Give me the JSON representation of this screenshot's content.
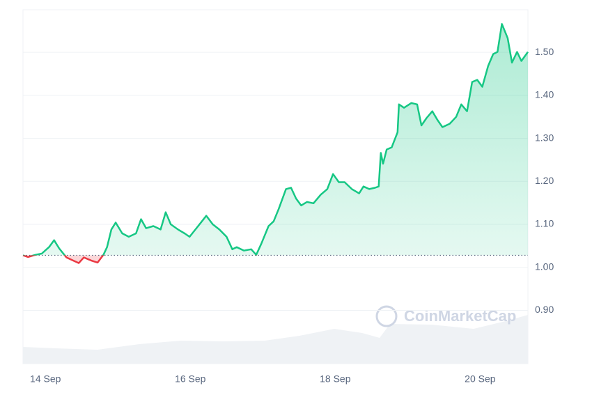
{
  "chart_data": {
    "type": "line",
    "x": [
      13.69,
      13.76,
      13.86,
      13.95,
      14.05,
      14.12,
      14.19,
      14.29,
      14.38,
      14.46,
      14.53,
      14.63,
      14.72,
      14.8,
      14.85,
      14.91,
      14.97,
      15.06,
      15.15,
      15.25,
      15.32,
      15.39,
      15.49,
      15.59,
      15.66,
      15.73,
      15.83,
      15.92,
      15.99,
      16.07,
      16.16,
      16.22,
      16.31,
      16.4,
      16.5,
      16.58,
      16.64,
      16.74,
      16.84,
      16.91,
      16.98,
      17.08,
      17.15,
      17.22,
      17.32,
      17.39,
      17.46,
      17.53,
      17.61,
      17.7,
      17.8,
      17.89,
      17.97,
      18.05,
      18.13,
      18.23,
      18.33,
      18.39,
      18.47,
      18.55,
      18.6,
      18.63,
      18.66,
      18.71,
      18.78,
      18.86,
      18.88,
      18.95,
      19.05,
      19.13,
      19.19,
      19.26,
      19.34,
      19.41,
      19.48,
      19.58,
      19.67,
      19.74,
      19.82,
      19.89,
      19.96,
      20.03,
      20.11,
      20.18,
      20.24,
      20.3,
      20.38,
      20.44,
      20.51,
      20.57,
      20.66
    ],
    "series": [
      {
        "values": [
          1.028,
          1.024,
          1.029,
          1.032,
          1.047,
          1.063,
          1.044,
          1.023,
          1.016,
          1.01,
          1.023,
          1.016,
          1.011,
          1.029,
          1.047,
          1.088,
          1.104,
          1.079,
          1.071,
          1.079,
          1.112,
          1.091,
          1.096,
          1.088,
          1.128,
          1.1,
          1.088,
          1.079,
          1.071,
          1.088,
          1.107,
          1.12,
          1.1,
          1.088,
          1.071,
          1.042,
          1.047,
          1.039,
          1.042,
          1.029,
          1.055,
          1.096,
          1.107,
          1.136,
          1.182,
          1.185,
          1.16,
          1.144,
          1.152,
          1.149,
          1.169,
          1.182,
          1.217,
          1.198,
          1.198,
          1.182,
          1.172,
          1.188,
          1.182,
          1.185,
          1.188,
          1.266,
          1.241,
          1.274,
          1.279,
          1.314,
          1.379,
          1.371,
          1.382,
          1.379,
          1.33,
          1.347,
          1.363,
          1.343,
          1.326,
          1.334,
          1.35,
          1.379,
          1.363,
          1.431,
          1.436,
          1.42,
          1.468,
          1.496,
          1.501,
          1.566,
          1.533,
          1.476,
          1.501,
          1.48,
          1.501
        ]
      }
    ],
    "baseline": 1.028,
    "up_color": "#16c784",
    "down_color": "#ea3943",
    "xlim": [
      13.69,
      20.66
    ],
    "xticks": [
      {
        "value": 14,
        "label": "14 Sep"
      },
      {
        "value": 16,
        "label": "16 Sep"
      },
      {
        "value": 18,
        "label": "18 Sep"
      },
      {
        "value": 20,
        "label": "20 Sep"
      }
    ],
    "ylim": [
      0.776,
      1.599
    ],
    "yticks": [
      {
        "value": 0.9,
        "label": "0.90"
      },
      {
        "value": 1.0,
        "label": "1.00"
      },
      {
        "value": 1.1,
        "label": "1.10"
      },
      {
        "value": 1.2,
        "label": "1.20"
      },
      {
        "value": 1.3,
        "label": "1.30"
      },
      {
        "value": 1.4,
        "label": "1.40"
      },
      {
        "value": 1.5,
        "label": "1.50"
      }
    ],
    "grid": true,
    "watermark": "CoinMarketCap"
  }
}
